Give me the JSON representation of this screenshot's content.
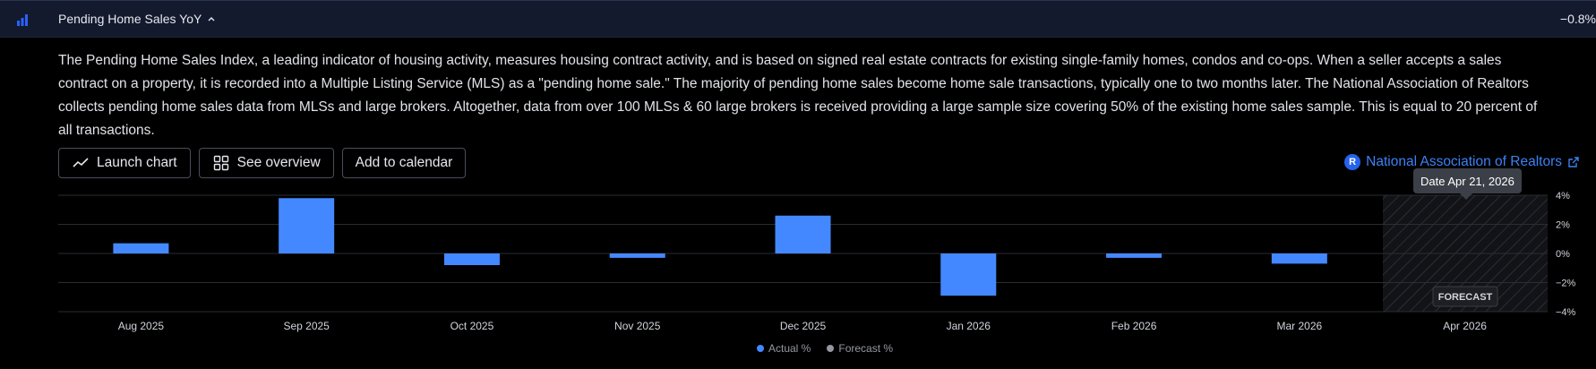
{
  "header": {
    "title": "Pending Home Sales YoY",
    "value": "−0.8%"
  },
  "description": "The Pending Home Sales Index, a leading indicator of housing activity, measures housing contract activity, and is based on signed real estate contracts for existing single-family homes, condos and co-ops. When a seller accepts a sales contract on a property, it is recorded into a Multiple Listing Service (MLS) as a \"pending home sale.\" The majority of pending home sales become home sale transactions, typically one to two months later. The National Association of Realtors collects pending home sales data from MLSs and large brokers. Altogether, data from over 100 MLSs & 60 large brokers is received providing a large sample size covering 50% of the existing home sales sample. This is equal to 20 percent of all transactions.",
  "buttons": {
    "launch_chart": "Launch chart",
    "see_overview": "See overview",
    "add_to_calendar": "Add to calendar"
  },
  "source": {
    "logo_letter": "R",
    "name": "National Association of Realtors"
  },
  "tooltip": "Date Apr 21, 2026",
  "forecast_label": "FORECAST",
  "legend": {
    "actual": "Actual %",
    "forecast": "Forecast %"
  },
  "colors": {
    "actual": "#4488ff",
    "forecast": "#9598a1",
    "source_link": "#3b82f6"
  },
  "icons": {
    "header": "bar-chart-icon",
    "launch_chart": "line-chart-icon",
    "see_overview": "grid-icon",
    "source_link": "external-link-icon"
  },
  "chart_data": {
    "type": "bar",
    "categories": [
      "Aug 2025",
      "Sep 2025",
      "Oct 2025",
      "Nov 2025",
      "Dec 2025",
      "Jan 2026",
      "Feb 2026",
      "Mar 2026",
      "Apr 2026"
    ],
    "series": [
      {
        "name": "Actual %",
        "values": [
          0.7,
          3.8,
          -0.8,
          -0.3,
          2.6,
          -2.9,
          -0.3,
          -0.7,
          null
        ]
      }
    ],
    "forecast_categories": [
      "Apr 2026"
    ],
    "y_ticks": [
      "4%",
      "2%",
      "0%",
      "−2%",
      "−4%"
    ],
    "ylim": [
      -4,
      4
    ],
    "grid": true,
    "legend_position": "bottom-center"
  }
}
